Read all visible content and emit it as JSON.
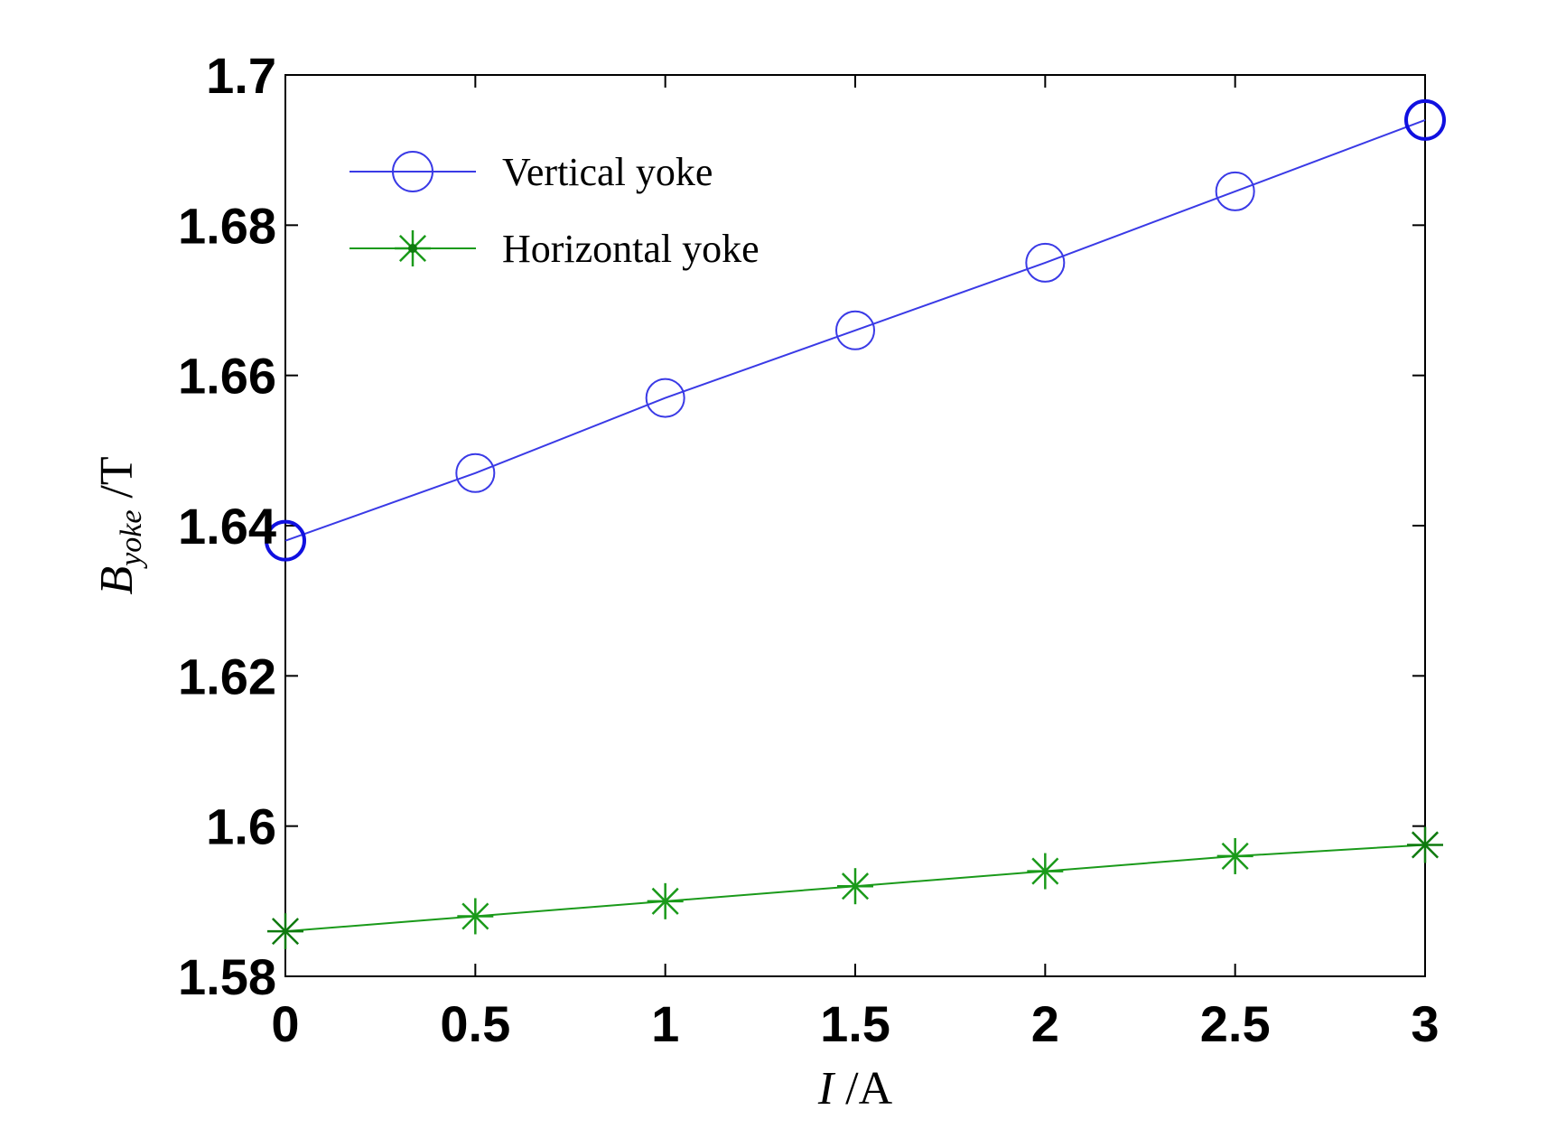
{
  "chart_data": {
    "type": "line",
    "x": [
      0,
      0.5,
      1,
      1.5,
      2,
      2.5,
      3
    ],
    "xlim": [
      0,
      3
    ],
    "ylim": [
      1.58,
      1.7
    ],
    "xticks": [
      0,
      0.5,
      1,
      1.5,
      2,
      2.5,
      3
    ],
    "xtick_labels": [
      "0",
      "0.5",
      "1",
      "1.5",
      "2",
      "2.5",
      "3"
    ],
    "yticks": [
      1.58,
      1.6,
      1.62,
      1.64,
      1.66,
      1.68,
      1.7
    ],
    "ytick_labels": [
      "1.58",
      "1.6",
      "1.62",
      "1.64",
      "1.66",
      "1.68",
      "1.7"
    ],
    "xlabel": {
      "italic": "I",
      "rest": " /A"
    },
    "ylabel": {
      "main": "B",
      "sub": "yoke",
      "rest": " /T"
    },
    "legend_position": "top-left",
    "grid": false,
    "series": [
      {
        "name": "Vertical yoke",
        "color": "#3a3ae6",
        "marker": "circle",
        "values": [
          1.638,
          1.647,
          1.657,
          1.666,
          1.675,
          1.6845,
          1.694
        ]
      },
      {
        "name": "Horizontal yoke",
        "color": "#1a9a1a",
        "marker": "star",
        "values": [
          1.586,
          1.588,
          1.59,
          1.592,
          1.594,
          1.596,
          1.5975
        ]
      }
    ]
  }
}
